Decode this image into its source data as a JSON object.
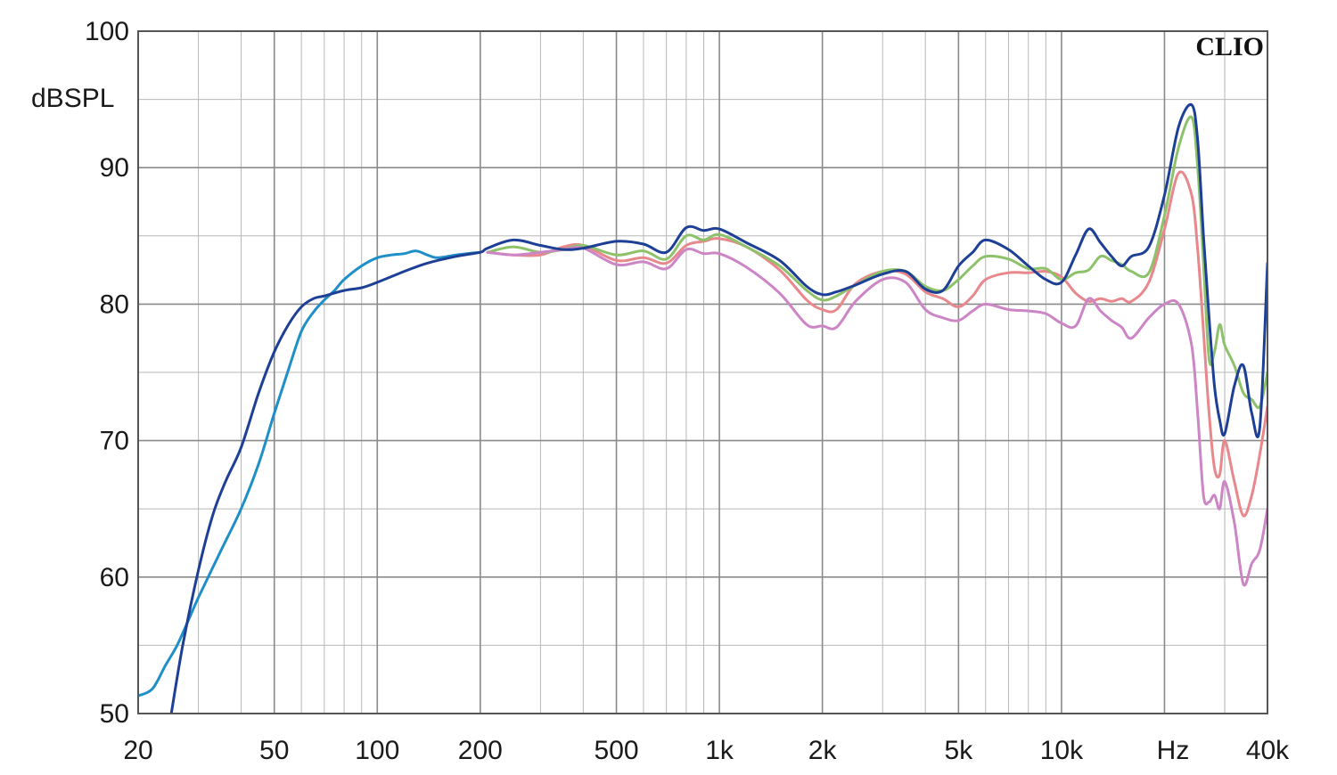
{
  "chart_data": {
    "type": "line",
    "title": "",
    "xlabel": "Hz",
    "ylabel": "dBSPL",
    "watermark": "CLIO",
    "x_scale": "log",
    "xlim": [
      20,
      40000
    ],
    "ylim": [
      50,
      100
    ],
    "grid": true,
    "x_ticks": [
      {
        "value": 20,
        "label": "20"
      },
      {
        "value": 50,
        "label": "50"
      },
      {
        "value": 100,
        "label": "100"
      },
      {
        "value": 200,
        "label": "200"
      },
      {
        "value": 500,
        "label": "500"
      },
      {
        "value": 1000,
        "label": "1k"
      },
      {
        "value": 2000,
        "label": "2k"
      },
      {
        "value": 5000,
        "label": "5k"
      },
      {
        "value": 10000,
        "label": "10k"
      },
      {
        "value": 40000,
        "label": "40k"
      }
    ],
    "y_ticks": [
      50,
      60,
      70,
      80,
      90,
      100
    ],
    "series": [
      {
        "color": "#e8878c",
        "x": [
          210,
          250,
          300,
          350,
          400,
          500,
          600,
          700,
          800,
          900,
          1000,
          1200,
          1500,
          1800,
          2000,
          2200,
          2500,
          3000,
          3500,
          4000,
          4500,
          5000,
          5500,
          6000,
          7000,
          8000,
          9000,
          10000,
          11000,
          12000,
          13000,
          14000,
          15000,
          16000,
          18000,
          20000,
          22000,
          24000,
          25000,
          26000,
          27000,
          28000,
          29000,
          30000,
          32000,
          34000,
          36000,
          38000,
          40000
        ],
        "y": [
          83.8,
          83.6,
          83.6,
          84.2,
          84.3,
          83.2,
          83.4,
          83.0,
          84.3,
          84.6,
          84.8,
          84.2,
          82.5,
          80.3,
          79.6,
          79.6,
          81.5,
          82.4,
          82.2,
          80.9,
          80.4,
          79.8,
          80.6,
          81.8,
          82.3,
          82.3,
          82.4,
          82.0,
          80.8,
          80.2,
          80.4,
          80.2,
          80.4,
          80.2,
          81.6,
          85.5,
          89.6,
          88.0,
          84.0,
          78.0,
          72.0,
          68.0,
          67.5,
          70.0,
          67.0,
          64.5,
          66.0,
          69.0,
          72.5
        ]
      },
      {
        "color": "#8dc26a",
        "x": [
          210,
          250,
          300,
          350,
          400,
          500,
          600,
          700,
          800,
          900,
          1000,
          1200,
          1500,
          1800,
          2000,
          2200,
          2500,
          3000,
          3500,
          4000,
          4500,
          5000,
          5500,
          6000,
          7000,
          8000,
          9000,
          10000,
          11000,
          12000,
          13000,
          14000,
          15000,
          16000,
          18000,
          20000,
          22000,
          24000,
          25000,
          26000,
          27000,
          28000,
          29000,
          30000,
          32000,
          34000,
          36000,
          38000,
          40000
        ],
        "y": [
          83.8,
          84.2,
          83.8,
          84.0,
          84.3,
          83.6,
          83.9,
          83.3,
          85.0,
          84.7,
          85.1,
          84.2,
          82.8,
          81.0,
          80.3,
          80.6,
          81.4,
          82.4,
          82.4,
          81.3,
          81.0,
          81.8,
          82.8,
          83.5,
          83.3,
          82.6,
          82.6,
          81.8,
          82.3,
          82.5,
          83.5,
          83.2,
          82.9,
          82.4,
          82.3,
          86.5,
          91.5,
          93.7,
          90.0,
          83.0,
          76.0,
          76.5,
          78.5,
          77.0,
          75.5,
          73.5,
          73.0,
          72.5,
          75.0
        ]
      },
      {
        "color": "#cc85c5",
        "x": [
          210,
          250,
          300,
          350,
          400,
          500,
          600,
          700,
          800,
          900,
          1000,
          1200,
          1500,
          1800,
          2000,
          2200,
          2500,
          3000,
          3500,
          4000,
          4500,
          5000,
          5500,
          6000,
          7000,
          8000,
          9000,
          10000,
          11000,
          12000,
          13000,
          14000,
          15000,
          16000,
          18000,
          20000,
          22000,
          24000,
          25000,
          26000,
          27000,
          28000,
          29000,
          30000,
          32000,
          34000,
          36000,
          38000,
          40000
        ],
        "y": [
          83.8,
          83.6,
          83.8,
          84.0,
          84.1,
          82.9,
          83.1,
          82.6,
          84.0,
          83.7,
          83.7,
          82.7,
          80.8,
          78.5,
          78.4,
          78.3,
          80.2,
          81.8,
          81.6,
          79.6,
          79.0,
          78.8,
          79.5,
          80.0,
          79.6,
          79.5,
          79.3,
          78.6,
          78.4,
          80.4,
          79.5,
          78.8,
          78.3,
          77.5,
          79.0,
          80.0,
          80.0,
          77.0,
          72.0,
          66.0,
          65.5,
          66.0,
          65.0,
          67.0,
          64.0,
          59.5,
          61.0,
          62.0,
          65.0
        ]
      },
      {
        "color": "#1f8fc8",
        "x": [
          20,
          22,
          24,
          26,
          28,
          30,
          35,
          40,
          45,
          50,
          55,
          60,
          65,
          70,
          75,
          80,
          90,
          100,
          110,
          120,
          130,
          140,
          150,
          170,
          200
        ],
        "y": [
          51.3,
          51.8,
          53.5,
          55.0,
          56.8,
          58.5,
          62.0,
          65.0,
          68.3,
          72.0,
          75.2,
          78.0,
          79.4,
          80.3,
          81.0,
          81.8,
          82.8,
          83.4,
          83.6,
          83.7,
          83.9,
          83.6,
          83.4,
          83.6,
          83.8
        ]
      },
      {
        "color": "#1d3f96",
        "x": [
          25,
          27,
          30,
          33,
          36,
          40,
          45,
          50,
          55,
          60,
          65,
          70,
          80,
          90,
          100,
          120,
          140,
          170,
          200,
          210,
          250,
          300,
          350,
          400,
          500,
          600,
          700,
          800,
          900,
          1000,
          1200,
          1500,
          1800,
          2000,
          2200,
          2500,
          3000,
          3500,
          4000,
          4500,
          5000,
          5500,
          6000,
          7000,
          8000,
          9000,
          10000,
          11000,
          12000,
          13000,
          14000,
          15000,
          16000,
          18000,
          20000,
          22000,
          24000,
          25000,
          26000,
          27000,
          28000,
          29000,
          30000,
          32000,
          34000,
          36000,
          38000,
          40000
        ],
        "y": [
          50.0,
          55.0,
          60.5,
          64.5,
          67.0,
          69.5,
          73.5,
          76.5,
          78.5,
          79.8,
          80.4,
          80.6,
          81.0,
          81.2,
          81.6,
          82.4,
          83.0,
          83.5,
          83.8,
          84.1,
          84.7,
          84.3,
          84.0,
          84.1,
          84.6,
          84.4,
          83.8,
          85.6,
          85.4,
          85.5,
          84.5,
          83.2,
          81.3,
          80.7,
          80.9,
          81.4,
          82.2,
          82.4,
          81.1,
          81.0,
          82.8,
          83.8,
          84.7,
          84.0,
          82.8,
          81.8,
          81.6,
          83.6,
          85.5,
          84.5,
          83.5,
          82.8,
          83.5,
          84.2,
          88.0,
          93.0,
          94.6,
          92.0,
          85.0,
          79.0,
          74.0,
          71.5,
          70.5,
          74.0,
          75.5,
          72.0,
          71.0,
          83.0
        ]
      }
    ]
  }
}
